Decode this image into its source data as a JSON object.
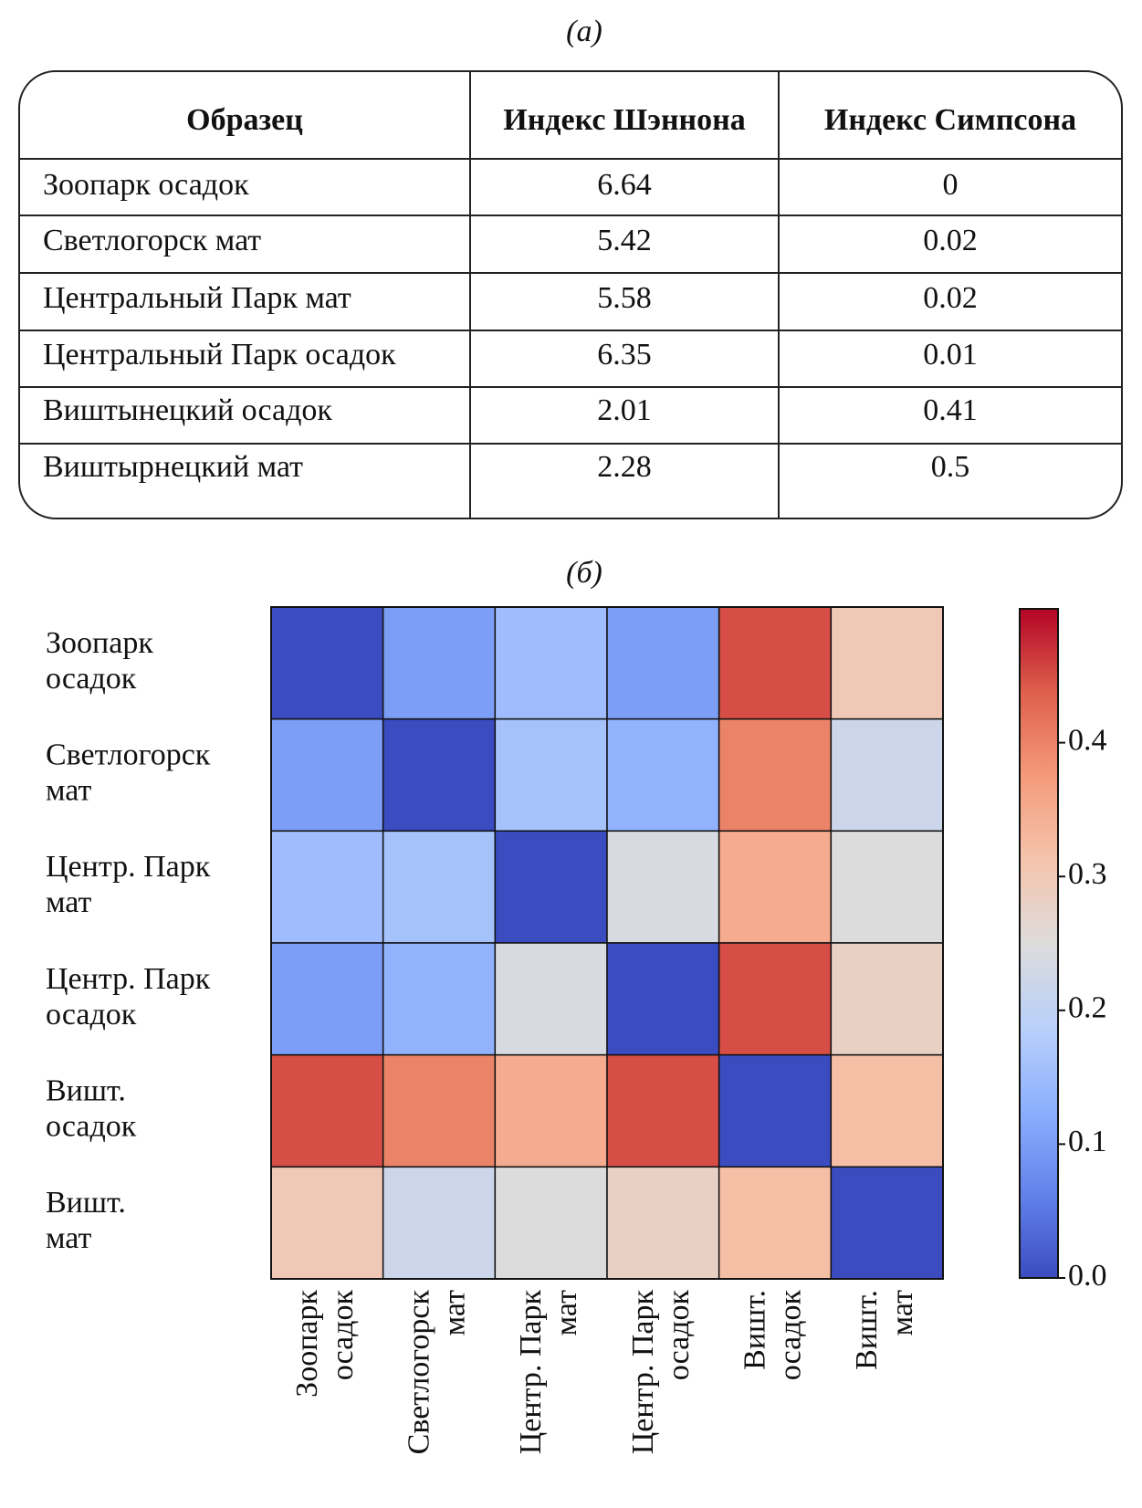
{
  "panel_a": {
    "label": "(a)",
    "table": {
      "header": [
        "Образец",
        "Индекс Шэннона",
        "Индекс Симпсона"
      ],
      "rows": [
        [
          "Зоопарк осадок",
          6.64,
          0
        ],
        [
          "Светлогорск мат",
          5.42,
          0.02
        ],
        [
          "Центральный Парк мат",
          5.58,
          0.02
        ],
        [
          "Центральный Парк осадок",
          6.35,
          0.01
        ],
        [
          "Виштынецкий осадок",
          2.01,
          0.41
        ],
        [
          "Виштырнецкий мат",
          2.28,
          0.5
        ]
      ]
    }
  },
  "chart_data": {
    "type": "heatmap",
    "title": "(б)",
    "rows": [
      "Зоопарк\nосадок",
      "Светлогорск\nмат",
      "Центр. Парк\nмат",
      "Центр. Парк\nосадок",
      "Вишт.\nосадок",
      "Вишт.\nмат"
    ],
    "columns": [
      "Зоопарк\nосадок",
      "Светлогорск\nмат",
      "Центр. Парк\nмат",
      "Центр. Парк\nосадок",
      "Вишт.\nосадок",
      "Вишт.\nмат"
    ],
    "values": [
      [
        0,
        0.1,
        0.15,
        0.1,
        0.45,
        0.3
      ],
      [
        0.1,
        0,
        0.16,
        0.13,
        0.4,
        0.22
      ],
      [
        0.15,
        0.16,
        0,
        0.24,
        0.35,
        0.25
      ],
      [
        0.1,
        0.13,
        0.24,
        0,
        0.45,
        0.28
      ],
      [
        0.45,
        0.4,
        0.35,
        0.45,
        0,
        0.32
      ],
      [
        0.3,
        0.22,
        0.25,
        0.28,
        0.32,
        0
      ]
    ],
    "cmap": "coolwarm",
    "zlim": [
      0,
      0.5
    ],
    "zticks": [
      {
        "value": 0,
        "label": "0.0"
      },
      0.1,
      0.2,
      0.3,
      0.4
    ]
  }
}
